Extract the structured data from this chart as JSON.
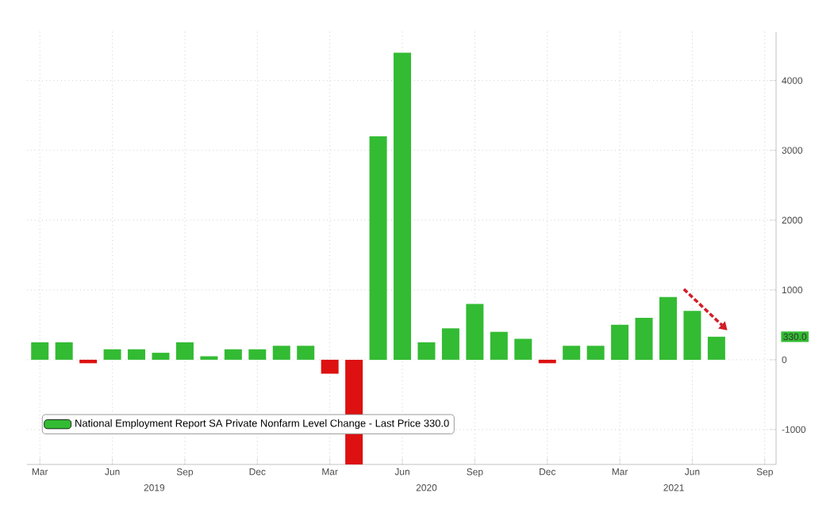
{
  "chart_data": {
    "type": "bar",
    "x": [
      "2019-03",
      "2019-04",
      "2019-05",
      "2019-06",
      "2019-07",
      "2019-08",
      "2019-09",
      "2019-10",
      "2019-11",
      "2019-12",
      "2020-01",
      "2020-02",
      "2020-03",
      "2020-04",
      "2020-05",
      "2020-06",
      "2020-07",
      "2020-08",
      "2020-09",
      "2020-10",
      "2020-11",
      "2020-12",
      "2021-01",
      "2021-02",
      "2021-03",
      "2021-04",
      "2021-05",
      "2021-06",
      "2021-07"
    ],
    "series": [
      {
        "name": "National Employment Report SA Private Nonfarm Level Change - Last Price 330.0",
        "values": [
          250,
          250,
          -50,
          150,
          150,
          100,
          250,
          50,
          150,
          150,
          200,
          200,
          -200,
          -1500,
          3200,
          4400,
          250,
          450,
          800,
          400,
          300,
          -50,
          200,
          200,
          500,
          600,
          900,
          700,
          330
        ],
        "colors": [
          "#33bb33",
          "#33bb33",
          "#dd1111",
          "#33bb33",
          "#33bb33",
          "#33bb33",
          "#33bb33",
          "#33bb33",
          "#33bb33",
          "#33bb33",
          "#33bb33",
          "#33bb33",
          "#dd1111",
          "#dd1111",
          "#33bb33",
          "#33bb33",
          "#33bb33",
          "#33bb33",
          "#33bb33",
          "#33bb33",
          "#33bb33",
          "#dd1111",
          "#33bb33",
          "#33bb33",
          "#33bb33",
          "#33bb33",
          "#33bb33",
          "#33bb33",
          "#33bb33"
        ]
      }
    ],
    "xlim": [
      "2019-02-15",
      "2021-09-15"
    ],
    "xticks": [
      {
        "value": "2019-03",
        "label": "Mar"
      },
      {
        "value": "2019-06",
        "label": "Jun"
      },
      {
        "value": "2019-09",
        "label": "Sep"
      },
      {
        "value": "2019-12",
        "label": "Dec"
      },
      {
        "value": "2020-03",
        "label": "Mar"
      },
      {
        "value": "2020-06",
        "label": "Jun"
      },
      {
        "value": "2020-09",
        "label": "Sep"
      },
      {
        "value": "2020-12",
        "label": "Dec"
      },
      {
        "value": "2021-03",
        "label": "Mar"
      },
      {
        "value": "2021-06",
        "label": "Jun"
      },
      {
        "value": "2021-09",
        "label": "Sep"
      }
    ],
    "ylim": [
      -1500,
      4700
    ],
    "yticks": [
      -1000,
      0,
      1000,
      2000,
      3000,
      4000
    ],
    "grid": true,
    "legend": "bottom left",
    "annotations": [
      "2019",
      "2020",
      "2021",
      "330.0"
    ]
  }
}
